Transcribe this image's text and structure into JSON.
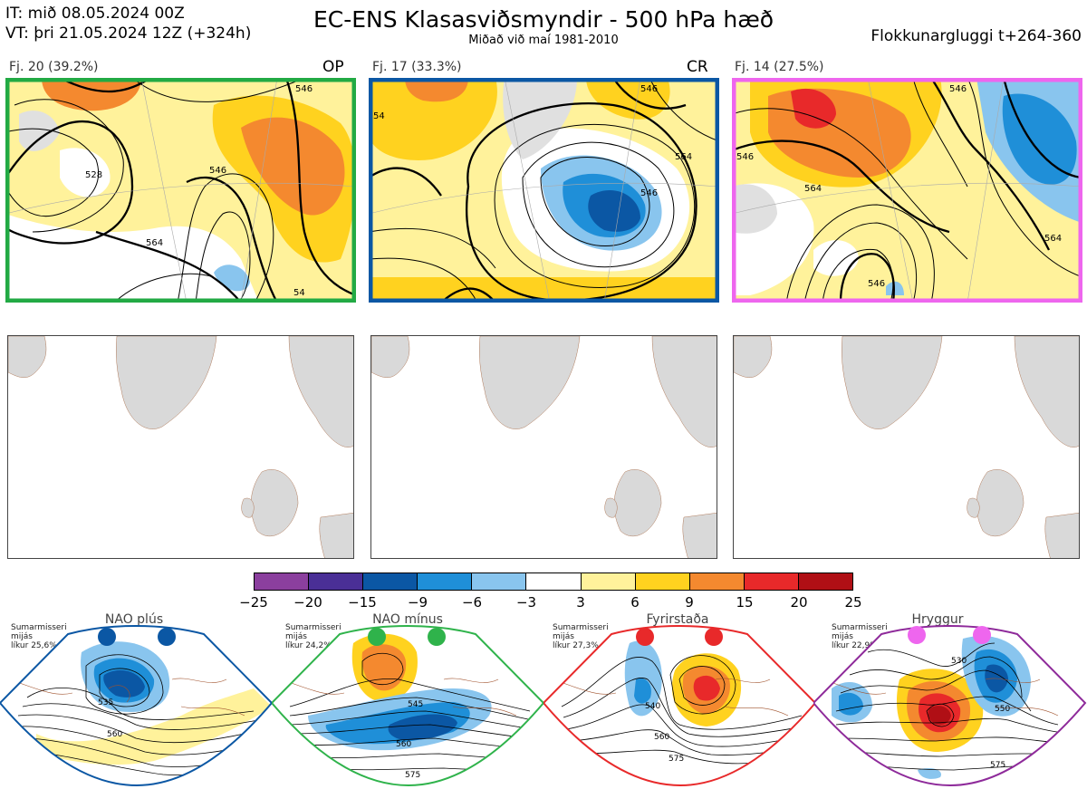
{
  "header": {
    "it_line": "IT: mið 08.05.2024 00Z",
    "vt_line": "VT: þri 21.05.2024 12Z  (+324h)",
    "title": "EC-ENS Klasasviðsmyndir - 500 hPa hæð",
    "subtitle": "Miðað við maí 1981-2010",
    "window": "Flokkunargluggi t+264-360"
  },
  "clusters": [
    {
      "label": "Fj. 20 (39.2%)",
      "code": "OP",
      "frame_color": "#22aa44"
    },
    {
      "label": "Fj. 17 (33.3%)",
      "code": "CR",
      "frame_color": "#0b57a4"
    },
    {
      "label": "Fj. 14 (27.5%)",
      "code": "",
      "frame_color": "#ee66ee"
    }
  ],
  "contour_labels": [
    "546",
    "528",
    "564",
    "54"
  ],
  "colorbar": {
    "ticks": [
      "−25",
      "−20",
      "−15",
      "−9",
      "−6",
      "−3",
      "3",
      "6",
      "9",
      "15",
      "20",
      "25"
    ],
    "colors": [
      "#8b3f9e",
      "#4a2f96",
      "#0b57a4",
      "#1f8fd8",
      "#89c5ee",
      "#ffffff",
      "#fff29b",
      "#ffd21f",
      "#f4892f",
      "#e8292a",
      "#b00f15"
    ]
  },
  "regimes": [
    {
      "name": "NAO plús",
      "season": "Sumarmisseri",
      "freq_label": "mijás",
      "prob": "líkur 25,6%",
      "dot_color": "#0b57a4",
      "frame_color": "#0b57a4",
      "labels": [
        "535",
        "560"
      ]
    },
    {
      "name": "NAO mínus",
      "season": "Sumarmisseri",
      "freq_label": "mijás",
      "prob": "líkur 24,2%",
      "dot_color": "#2fb34b",
      "frame_color": "#2fb34b",
      "labels": [
        "545",
        "560",
        "575"
      ]
    },
    {
      "name": "Fyrirstaða",
      "season": "Sumarmisseri",
      "freq_label": "mijás",
      "prob": "líkur 27,3%",
      "dot_color": "#e8292a",
      "frame_color": "#e8292a",
      "labels": [
        "540",
        "560",
        "575"
      ]
    },
    {
      "name": "Hryggur",
      "season": "Sumarmisseri",
      "freq_label": "mijás",
      "prob": "líkur 22,9%",
      "dot_color": "#ee66ee",
      "frame_color": "#8e2a9a",
      "labels": [
        "530",
        "550",
        "575"
      ]
    }
  ]
}
